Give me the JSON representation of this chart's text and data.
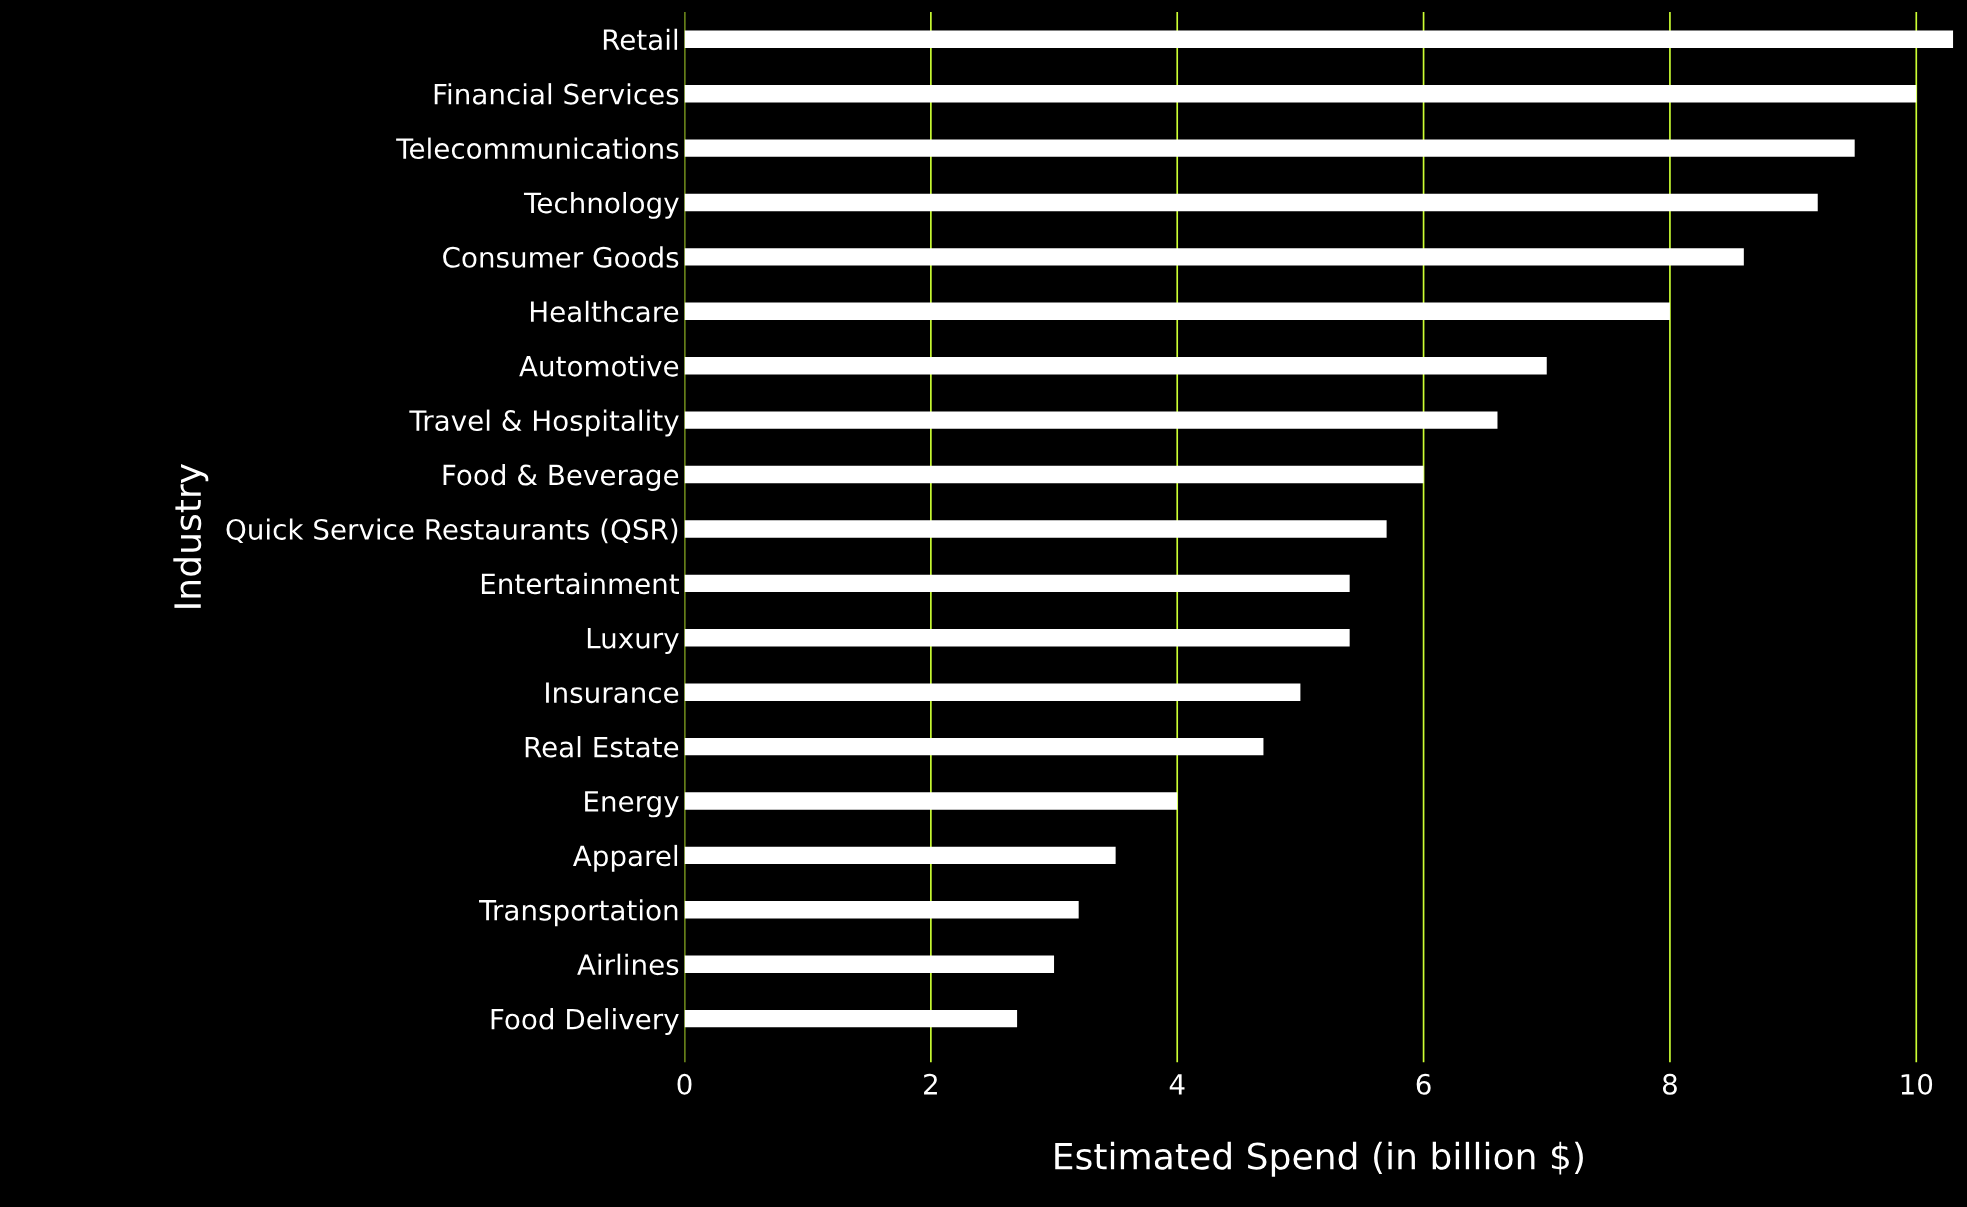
{
  "chart_data": {
    "type": "bar",
    "orientation": "horizontal",
    "xlabel": "Estimated Spend (in billion $)",
    "ylabel": "Industry",
    "categories": [
      "Retail",
      "Financial Services",
      "Telecommunications",
      "Technology",
      "Consumer Goods",
      "Healthcare",
      "Automotive",
      "Travel & Hospitality",
      "Food & Beverage",
      "Quick Service Restaurants (QSR)",
      "Entertainment",
      "Luxury",
      "Insurance",
      "Real Estate",
      "Energy",
      "Apparel",
      "Transportation",
      "Airlines",
      "Food Delivery"
    ],
    "values": [
      10.3,
      10.0,
      9.5,
      9.2,
      8.6,
      8.0,
      7.0,
      6.6,
      6.0,
      5.7,
      5.4,
      5.4,
      5.0,
      4.7,
      4.0,
      3.5,
      3.2,
      3.0,
      2.7
    ],
    "color": "#ffffff",
    "xlim": [
      0,
      10.3
    ],
    "xticks": [
      0,
      2,
      4,
      6,
      8,
      10
    ],
    "grid": "x"
  }
}
